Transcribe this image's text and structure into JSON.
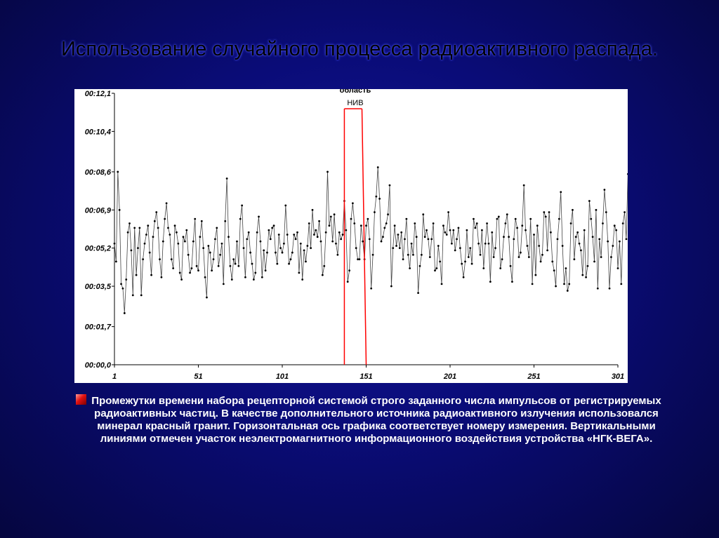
{
  "slide": {
    "title": "Использование случайного процесса радиоактивного распада.",
    "caption": "Промежутки времени набора рецепторной системой строго заданного числа импульсов от регистрируемых радиоактивных частиц. В качестве дополнительного источника радиоактивного излучения использовался минерал красный гранит. Горизонтальная ось графика соответствует номеру измерения. Вертикальными линиями отмечен участок неэлектромагнитного информационного воздействия устройства «НГК-ВЕГА».",
    "bullet_icon": "red-square-bullet"
  },
  "colors": {
    "background": "#0a0c78",
    "series": "#000000",
    "marker": "#ff0000"
  },
  "chart_data": {
    "type": "line",
    "y_tick_labels": [
      "00:12,1",
      "00:10,4",
      "00:08,6",
      "00:06,9",
      "00:05,2",
      "00:03,5",
      "00:01,7",
      "00:00,0"
    ],
    "y_tick_values": [
      12.1,
      10.4,
      8.6,
      6.9,
      5.2,
      3.5,
      1.7,
      0.0
    ],
    "ylim": [
      0,
      12.1
    ],
    "x_tick_labels": [
      "1",
      "51",
      "101",
      "151",
      "201",
      "251",
      "301"
    ],
    "x_tick_values": [
      1,
      51,
      101,
      151,
      201,
      251,
      301
    ],
    "xlim": [
      1,
      301
    ],
    "region_marker": {
      "label_line1": "область",
      "label_line2": "НИВ",
      "start": 138,
      "end": 151
    },
    "series": [
      {
        "x_start": 1,
        "values": [
          5.4,
          4.6,
          8.6,
          6.9,
          3.6,
          3.4,
          2.3,
          3.8,
          5.9,
          6.3,
          5.1,
          3.1,
          6.1,
          4.0,
          5.2,
          6.1,
          3.1,
          4.7,
          5.4,
          5.8,
          6.2,
          5.0,
          4.0,
          5.7,
          6.4,
          6.8,
          6.1,
          4.7,
          3.9,
          5.5,
          6.5,
          7.2,
          6.1,
          5.8,
          4.7,
          4.3,
          6.2,
          5.9,
          5.4,
          4.1,
          3.8,
          5.7,
          5.5,
          6.0,
          4.9,
          4.1,
          4.3,
          5.5,
          6.5,
          4.4,
          4.2,
          5.7,
          6.4,
          5.2,
          3.9,
          3.0,
          5.3,
          5.0,
          4.2,
          4.7,
          5.6,
          6.1,
          4.4,
          4.9,
          5.4,
          3.6,
          6.4,
          8.3,
          5.7,
          4.4,
          3.8,
          4.7,
          4.5,
          5.5,
          4.4,
          6.5,
          7.1,
          5.2,
          3.9,
          5.6,
          5.9,
          5.0,
          4.5,
          3.8,
          4.1,
          5.9,
          6.6,
          5.5,
          3.9,
          5.1,
          4.2,
          5.0,
          6.0,
          5.6,
          6.1,
          6.2,
          5.0,
          4.5,
          5.8,
          5.2,
          5.0,
          5.4,
          7.1,
          5.8,
          4.5,
          4.7,
          5.0,
          5.8,
          5.6,
          5.9,
          4.1,
          5.4,
          3.8,
          5.1,
          4.6,
          5.3,
          6.3,
          5.2,
          6.9,
          5.8,
          6.0,
          5.7,
          6.4,
          5.5,
          4.0,
          4.4,
          5.9,
          8.6,
          6.2,
          6.6,
          5.5,
          6.7,
          5.4,
          4.9,
          5.9,
          5.6,
          5.8,
          7.3,
          6.0,
          3.7,
          4.2,
          6.5,
          7.2,
          6.3,
          5.2,
          4.7,
          4.7,
          6.2,
          5.5,
          4.7,
          6.2,
          6.5,
          5.6,
          3.4,
          4.9,
          6.8,
          7.5,
          8.8,
          7.4,
          5.5,
          5.7,
          6.1,
          6.3,
          6.7,
          8.0,
          3.5,
          5.2,
          6.2,
          5.3,
          5.8,
          5.2,
          5.9,
          4.7,
          5.6,
          6.5,
          4.9,
          4.3,
          5.4,
          4.9,
          6.3,
          5.7,
          3.2,
          4.4,
          4.9,
          6.7,
          5.7,
          6.0,
          5.6,
          4.8,
          5.6,
          6.3,
          4.2,
          4.3,
          5.3,
          4.6,
          3.6,
          6.2,
          5.9,
          5.8,
          6.8,
          6.0,
          5.4,
          6.0,
          5.1,
          5.6,
          6.1,
          5.2,
          4.5,
          3.9,
          4.6,
          6.0,
          4.8,
          5.2,
          4.5,
          6.5,
          6.1,
          6.3,
          5.4,
          4.9,
          6.0,
          4.3,
          5.4,
          6.3,
          5.4,
          3.7,
          5.9,
          4.8,
          5.2,
          6.5,
          6.6,
          4.3,
          4.7,
          5.7,
          6.3,
          6.7,
          5.7,
          4.4,
          3.7,
          5.6,
          6.5,
          6.1,
          4.8,
          5.0,
          6.2,
          8.0,
          6.0,
          5.3,
          4.8,
          6.5,
          3.6,
          5.8,
          4.0,
          6.2,
          5.3,
          4.6,
          4.9,
          6.8,
          6.6,
          5.1,
          6.8,
          5.9,
          4.6,
          4.2,
          3.5,
          5.6,
          6.5,
          7.7,
          5.3,
          3.6,
          4.3,
          3.3,
          3.6,
          6.3,
          6.9,
          4.7,
          5.7,
          5.9,
          5.4,
          5.1,
          4.0,
          6.0,
          3.9,
          4.4,
          7.3,
          6.5,
          5.7,
          4.6,
          6.9,
          3.4,
          5.6,
          4.8,
          6.3,
          7.8,
          6.8,
          5.5,
          3.4,
          4.8,
          5.3,
          6.2,
          6.0,
          4.3,
          5.5,
          3.6,
          6.3,
          6.8,
          5.6,
          8.5,
          5.4,
          5.2
        ]
      }
    ]
  }
}
